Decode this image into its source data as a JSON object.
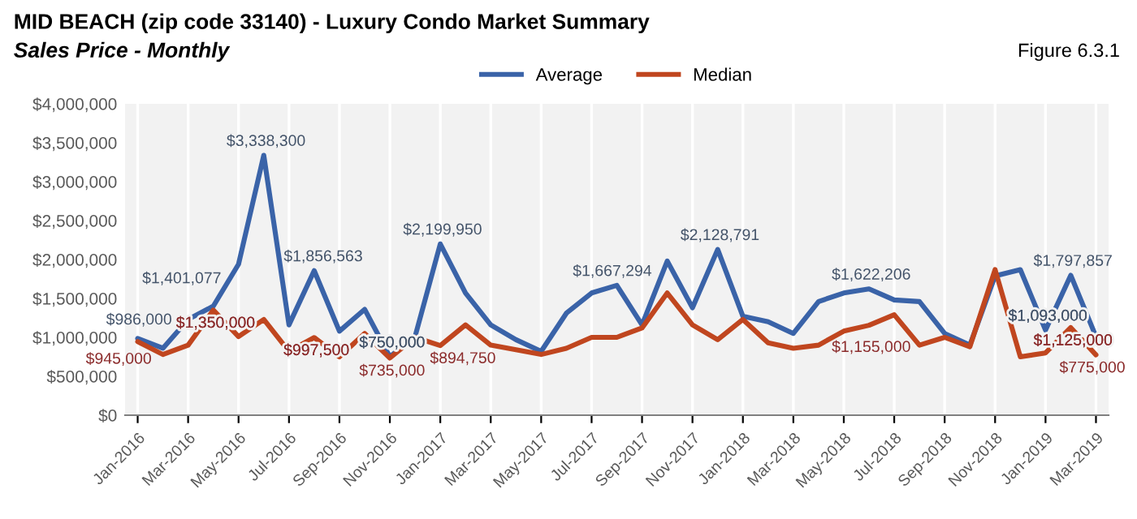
{
  "chart_data": {
    "type": "line",
    "title": "MID BEACH (zip code 33140) - Luxury Condo Market Summary",
    "subtitle": "Sales Price - Monthly",
    "annotations": [
      "Figure 6.3.1"
    ],
    "categories": [
      "Jan-2016",
      null,
      "Mar-2016",
      null,
      "May-2016",
      null,
      "Jul-2016",
      null,
      "Sep-2016",
      null,
      "Nov-2016",
      null,
      "Jan-2017",
      null,
      "Mar-2017",
      null,
      "May-2017",
      null,
      "Jul-2017",
      null,
      "Sep-2017",
      null,
      "Nov-2017",
      null,
      "Jan-2018",
      null,
      "Mar-2018",
      null,
      "May-2018",
      null,
      "Jul-2018",
      null,
      "Sep-2018",
      null,
      "Nov-2018",
      null,
      "Jan-2019",
      null,
      "Mar-2019"
    ],
    "series": [
      {
        "name": "Average",
        "color": "#3a63a8",
        "values": [
          986000,
          860000,
          1230000,
          1401077,
          1940000,
          3338300,
          1160000,
          1856563,
          1080000,
          1360000,
          750000,
          1010000,
          2199950,
          1570000,
          1160000,
          970000,
          820000,
          1310000,
          1570000,
          1667294,
          1160000,
          1980000,
          1380000,
          2128791,
          1270000,
          1200000,
          1050000,
          1460000,
          1570000,
          1622206,
          1480000,
          1460000,
          1050000,
          900000,
          1790000,
          1870000,
          1093000,
          1797857,
          1010000
        ],
        "value_labels": [
          "$986,000",
          null,
          null,
          "$1,401,077",
          null,
          "$3,338,300",
          null,
          "$1,856,563",
          null,
          null,
          "$750,000",
          null,
          "$2,199,950",
          null,
          null,
          null,
          null,
          null,
          null,
          "$1,667,294",
          null,
          null,
          null,
          "$2,128,791",
          null,
          null,
          null,
          null,
          null,
          "$1,622,206",
          null,
          null,
          null,
          null,
          null,
          null,
          "$1,093,000",
          "$1,797,857",
          null
        ]
      },
      {
        "name": "Median",
        "color": "#c0461f",
        "values": [
          945000,
          780000,
          900000,
          1350000,
          1010000,
          1230000,
          820000,
          997500,
          750000,
          1050000,
          735000,
          1000000,
          894750,
          1160000,
          900000,
          840000,
          780000,
          860000,
          1000000,
          1000000,
          1120000,
          1570000,
          1160000,
          970000,
          1230000,
          930000,
          860000,
          900000,
          1080000,
          1155000,
          1290000,
          900000,
          1000000,
          880000,
          1870000,
          750000,
          800000,
          1125000,
          775000
        ],
        "value_labels": [
          "$945,000",
          null,
          null,
          "$1,350,000",
          null,
          null,
          null,
          "$997,500",
          null,
          null,
          "$735,000",
          null,
          "$894,750",
          null,
          null,
          null,
          null,
          null,
          null,
          null,
          null,
          null,
          null,
          null,
          null,
          null,
          null,
          null,
          null,
          "$1,155,000",
          null,
          null,
          null,
          null,
          null,
          null,
          null,
          "$1,125,000",
          "$775,000"
        ]
      }
    ],
    "ylim": [
      0,
      4000000
    ],
    "yticks": [
      {
        "value": 0,
        "label": "$0"
      },
      {
        "value": 500000,
        "label": "$500,000"
      },
      {
        "value": 1000000,
        "label": "$1,000,000"
      },
      {
        "value": 1500000,
        "label": "$1,500,000"
      },
      {
        "value": 2000000,
        "label": "$2,000,000"
      },
      {
        "value": 2500000,
        "label": "$2,500,000"
      },
      {
        "value": 3000000,
        "label": "$3,000,000"
      },
      {
        "value": 3500000,
        "label": "$3,500,000"
      },
      {
        "value": 4000000,
        "label": "$4,000,000"
      }
    ],
    "grid": "x",
    "legend": "top",
    "marker": "none",
    "line_style": "solid"
  }
}
